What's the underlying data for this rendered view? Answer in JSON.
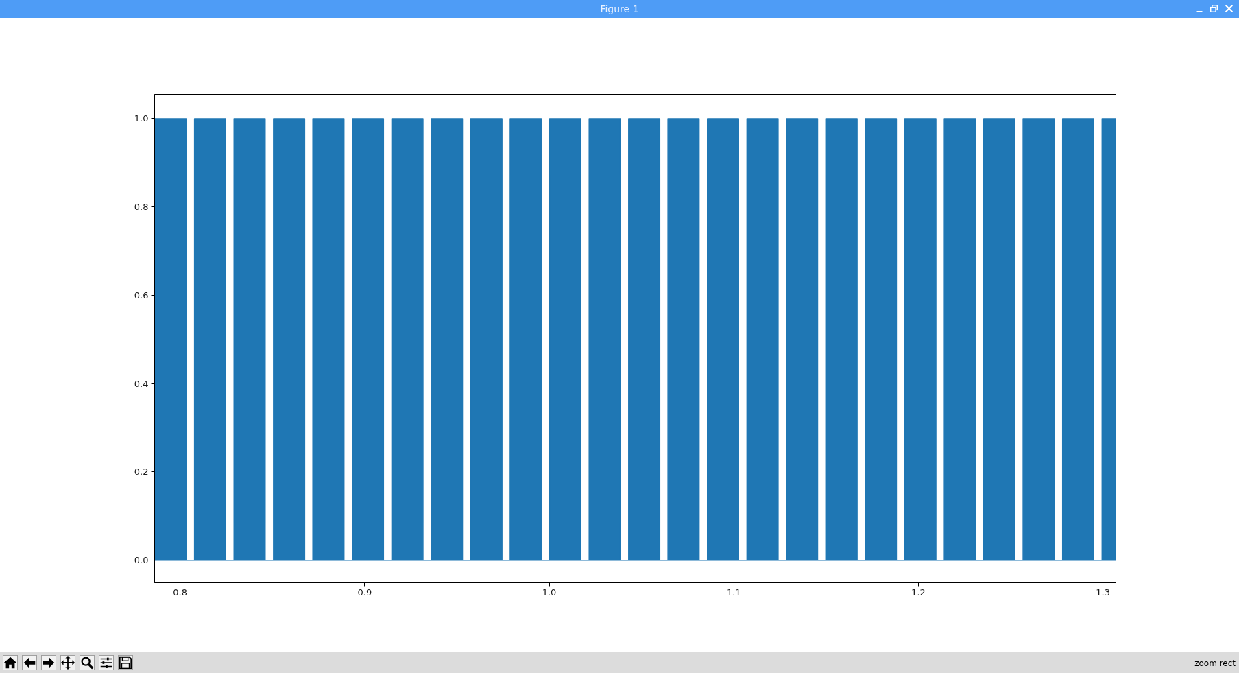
{
  "chart_data": {
    "type": "area",
    "color": "#1f77b4",
    "x": [
      0.7864,
      0.8033,
      0.8033,
      0.8078,
      0.8078,
      0.8247,
      0.8247,
      0.8292,
      0.8292,
      0.8461,
      0.8461,
      0.8506,
      0.8506,
      0.8675,
      0.8675,
      0.8719,
      0.8719,
      0.8888,
      0.8888,
      0.8933,
      0.8933,
      0.9102,
      0.9102,
      0.9147,
      0.9147,
      0.9316,
      0.9316,
      0.9361,
      0.9361,
      0.953,
      0.953,
      0.9574,
      0.9574,
      0.9744,
      0.9744,
      0.9788,
      0.9788,
      0.9957,
      0.9957,
      1.0002,
      1.0002,
      1.0171,
      1.0171,
      1.0216,
      1.0216,
      1.0385,
      1.0385,
      1.043,
      1.043,
      1.0599,
      1.0599,
      1.0643,
      1.0643,
      1.0812,
      1.0812,
      1.0857,
      1.0857,
      1.1026,
      1.1026,
      1.1071,
      1.1071,
      1.124,
      1.124,
      1.1285,
      1.1285,
      1.1454,
      1.1454,
      1.1498,
      1.1498,
      1.1668,
      1.1668,
      1.1712,
      1.1712,
      1.1881,
      1.1881,
      1.1926,
      1.1926,
      1.2095,
      1.2095,
      1.214,
      1.214,
      1.2309,
      1.2309,
      1.2354,
      1.2354,
      1.2523,
      1.2523,
      1.2567,
      1.2567,
      1.2736,
      1.2736,
      1.2781,
      1.2781,
      1.295,
      1.295,
      1.2995,
      1.2995,
      1.307
    ],
    "values": [
      1,
      1,
      0,
      0,
      1,
      1,
      0,
      0,
      1,
      1,
      0,
      0,
      1,
      1,
      0,
      0,
      1,
      1,
      0,
      0,
      1,
      1,
      0,
      0,
      1,
      1,
      0,
      0,
      1,
      1,
      0,
      0,
      1,
      1,
      0,
      0,
      1,
      1,
      0,
      0,
      1,
      1,
      0,
      0,
      1,
      1,
      0,
      0,
      1,
      1,
      0,
      0,
      1,
      1,
      0,
      0,
      1,
      1,
      0,
      0,
      1,
      1,
      0,
      0,
      1,
      1,
      0,
      0,
      1,
      1,
      0,
      0,
      1,
      1,
      0,
      0,
      1,
      1,
      0,
      0,
      1,
      1,
      0,
      0,
      1,
      1,
      0,
      0,
      1,
      1,
      0,
      0,
      1,
      1,
      0,
      0,
      1,
      1
    ],
    "xlim": [
      0.7862,
      1.307
    ],
    "ylim": [
      -0.051,
      1.055
    ],
    "xticks": [
      0.8,
      0.9,
      {
        "value": 1,
        "label": "1.0"
      },
      1.1,
      1.2,
      1.3
    ],
    "yticks": [
      {
        "value": 0,
        "label": "0.0"
      },
      0.2,
      0.4,
      0.6,
      0.8,
      {
        "value": 1,
        "label": "1.0"
      }
    ],
    "grid": false,
    "annotations": [
      "Figure 1",
      "zoom rect"
    ]
  }
}
